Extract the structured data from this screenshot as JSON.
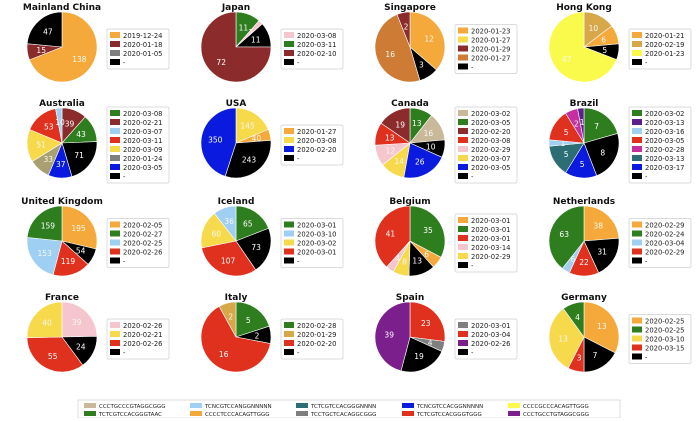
{
  "chart_data": [
    {
      "type": "pie",
      "title": "Mainland China",
      "slices": [
        {
          "value": 138,
          "color": "#f4a93a"
        },
        {
          "value": 15,
          "color": "#8c2b2b"
        },
        {
          "value": 47,
          "color": "#000000"
        }
      ],
      "legend": [
        {
          "label": "2019-12-24",
          "color": "#f4a93a"
        },
        {
          "label": "2020-01-18",
          "color": "#8c2b2b"
        },
        {
          "label": "2020-01-05",
          "color": "#7f7f7f"
        },
        {
          "label": "-",
          "color": "#000000"
        }
      ]
    },
    {
      "type": "pie",
      "title": "Japan",
      "slices": [
        {
          "value": 11,
          "color": "#2e7d1f"
        },
        {
          "value": 2,
          "color": "#f6c6cf"
        },
        {
          "value": 11,
          "color": "#000000"
        },
        {
          "value": 72,
          "color": "#8c2b2b"
        }
      ],
      "legend": [
        {
          "label": "2020-03-08",
          "color": "#f6c6cf"
        },
        {
          "label": "2020-03-11",
          "color": "#2e7d1f"
        },
        {
          "label": "2020-02-10",
          "color": "#8c2b2b"
        },
        {
          "label": "-",
          "color": "#000000"
        }
      ]
    },
    {
      "type": "pie",
      "title": "Singapore",
      "slices": [
        {
          "value": 12,
          "color": "#f4a93a"
        },
        {
          "value": 3,
          "color": "#000000"
        },
        {
          "value": 16,
          "color": "#cd7b35"
        },
        {
          "value": 2,
          "color": "#8c2b2b"
        }
      ],
      "legend": [
        {
          "label": "2020-01-23",
          "color": "#f4a93a"
        },
        {
          "label": "2020-01-27",
          "color": "#f7d94c"
        },
        {
          "label": "2020-01-29",
          "color": "#8c2b2b"
        },
        {
          "label": "2020-01-27",
          "color": "#cd7b35"
        },
        {
          "label": "-",
          "color": "#000000"
        }
      ]
    },
    {
      "type": "pie",
      "title": "Hong Kong",
      "slices": [
        {
          "value": 10,
          "color": "#d6a84a"
        },
        {
          "value": 6,
          "color": "#f4a93a"
        },
        {
          "value": 5,
          "color": "#000000"
        },
        {
          "value": 47,
          "color": "#fafa4c"
        }
      ],
      "legend": [
        {
          "label": "2020-01-21",
          "color": "#f4a93a"
        },
        {
          "label": "2020-02-19",
          "color": "#d6a84a"
        },
        {
          "label": "2020-01-23",
          "color": "#fafa4c"
        },
        {
          "label": "-",
          "color": "#000000"
        }
      ]
    },
    {
      "type": "pie",
      "title": "Australia",
      "slices": [
        {
          "value": 39,
          "color": "#8c2b2b"
        },
        {
          "value": 43,
          "color": "#2e7d1f"
        },
        {
          "value": 71,
          "color": "#000000"
        },
        {
          "value": 37,
          "color": "#0a1adf"
        },
        {
          "value": 33,
          "color": "#a9a072"
        },
        {
          "value": 51,
          "color": "#f7d94c"
        },
        {
          "value": 53,
          "color": "#e0301e"
        },
        {
          "value": 10,
          "color": "#9fcff2"
        }
      ],
      "legend": [
        {
          "label": "2020-03-08",
          "color": "#2e7d1f"
        },
        {
          "label": "2020-02-21",
          "color": "#8c2b2b"
        },
        {
          "label": "2020-03-07",
          "color": "#9fcff2"
        },
        {
          "label": "2020-03-11",
          "color": "#e0301e"
        },
        {
          "label": "2020-03-09",
          "color": "#f7d94c"
        },
        {
          "label": "2020-01-24",
          "color": "#7f7f7f"
        },
        {
          "label": "2020-03-05",
          "color": "#0a1adf"
        },
        {
          "label": "-",
          "color": "#000000"
        }
      ]
    },
    {
      "type": "pie",
      "title": "USA",
      "slices": [
        {
          "value": 145,
          "color": "#f7d94c"
        },
        {
          "value": 40,
          "color": "#f4a93a"
        },
        {
          "value": 243,
          "color": "#000000"
        },
        {
          "value": 350,
          "color": "#0a1adf"
        }
      ],
      "legend": [
        {
          "label": "2020-01-27",
          "color": "#f4a93a"
        },
        {
          "label": "2020-03-08",
          "color": "#f7d94c"
        },
        {
          "label": "2020-02-20",
          "color": "#0a1adf"
        },
        {
          "label": "-",
          "color": "#000000"
        }
      ]
    },
    {
      "type": "pie",
      "title": "Canada",
      "slices": [
        {
          "value": 13,
          "color": "#2e7d1f"
        },
        {
          "value": 16,
          "color": "#c9b99a"
        },
        {
          "value": 10,
          "color": "#000000"
        },
        {
          "value": 26,
          "color": "#0a1adf"
        },
        {
          "value": 14,
          "color": "#f7d94c"
        },
        {
          "value": 12,
          "color": "#f6c6cf"
        },
        {
          "value": 13,
          "color": "#e0301e"
        },
        {
          "value": 19,
          "color": "#8c2b2b"
        }
      ],
      "legend": [
        {
          "label": "2020-03-02",
          "color": "#c9b99a"
        },
        {
          "label": "2020-03-05",
          "color": "#2e7d1f"
        },
        {
          "label": "2020-02-20",
          "color": "#8c2b2b"
        },
        {
          "label": "2020-03-08",
          "color": "#e0301e"
        },
        {
          "label": "2020-02-29",
          "color": "#f6c6cf"
        },
        {
          "label": "2020-03-07",
          "color": "#f7d94c"
        },
        {
          "label": "2020-03-05",
          "color": "#0a1adf"
        },
        {
          "label": "-",
          "color": "#000000"
        }
      ]
    },
    {
      "type": "pie",
      "title": "Brazil",
      "slices": [
        {
          "value": 7,
          "color": "#2e7d1f"
        },
        {
          "value": 8,
          "color": "#000000"
        },
        {
          "value": 5,
          "color": "#0a1adf"
        },
        {
          "value": 5,
          "color": "#2c6e73"
        },
        {
          "value": 1,
          "color": "#9fcff2"
        },
        {
          "value": 5,
          "color": "#e0301e"
        },
        {
          "value": 2,
          "color": "#c62fa0"
        },
        {
          "value": 1,
          "color": "#5b1f8c"
        }
      ],
      "legend": [
        {
          "label": "2020-03-02",
          "color": "#2e7d1f"
        },
        {
          "label": "2020-03-13",
          "color": "#5b1f8c"
        },
        {
          "label": "2020-03-16",
          "color": "#9fcff2"
        },
        {
          "label": "2020-03-05",
          "color": "#e0301e"
        },
        {
          "label": "2020-02-28",
          "color": "#c62fa0"
        },
        {
          "label": "2020-03-13",
          "color": "#2c6e73"
        },
        {
          "label": "2020-03-17",
          "color": "#0a1adf"
        },
        {
          "label": "-",
          "color": "#000000"
        }
      ]
    },
    {
      "type": "pie",
      "title": "United Kingdom",
      "slices": [
        {
          "value": 195,
          "color": "#f4a93a"
        },
        {
          "value": 54,
          "color": "#000000"
        },
        {
          "value": 119,
          "color": "#e0301e"
        },
        {
          "value": 153,
          "color": "#9fcff2"
        },
        {
          "value": 159,
          "color": "#2e7d1f"
        }
      ],
      "legend": [
        {
          "label": "2020-02-05",
          "color": "#f4a93a"
        },
        {
          "label": "2020-02-27",
          "color": "#2e7d1f"
        },
        {
          "label": "2020-02-25",
          "color": "#9fcff2"
        },
        {
          "label": "2020-02-26",
          "color": "#e0301e"
        },
        {
          "label": "-",
          "color": "#000000"
        }
      ]
    },
    {
      "type": "pie",
      "title": "Iceland",
      "slices": [
        {
          "value": 65,
          "color": "#2e7d1f"
        },
        {
          "value": 73,
          "color": "#000000"
        },
        {
          "value": 107,
          "color": "#e0301e"
        },
        {
          "value": 60,
          "color": "#f7d94c"
        },
        {
          "value": 36,
          "color": "#9fcff2"
        }
      ],
      "legend": [
        {
          "label": "2020-03-01",
          "color": "#2e7d1f"
        },
        {
          "label": "2020-03-10",
          "color": "#9fcff2"
        },
        {
          "label": "2020-03-02",
          "color": "#f7d94c"
        },
        {
          "label": "2020-03-01",
          "color": "#e0301e"
        },
        {
          "label": "-",
          "color": "#000000"
        }
      ]
    },
    {
      "type": "pie",
      "title": "Belgium",
      "slices": [
        {
          "value": 35,
          "color": "#2e7d1f"
        },
        {
          "value": 6,
          "color": "#f4a93a"
        },
        {
          "value": 13,
          "color": "#000000"
        },
        {
          "value": 8,
          "color": "#f7d94c"
        },
        {
          "value": 4,
          "color": "#f6c6cf"
        },
        {
          "value": 41,
          "color": "#e0301e"
        }
      ],
      "legend": [
        {
          "label": "2020-03-01",
          "color": "#f4a93a"
        },
        {
          "label": "2020-03-01",
          "color": "#2e7d1f"
        },
        {
          "label": "2020-03-01",
          "color": "#e0301e"
        },
        {
          "label": "2020-03-14",
          "color": "#f6c6cf"
        },
        {
          "label": "2020-02-29",
          "color": "#f7d94c"
        },
        {
          "label": "-",
          "color": "#000000"
        }
      ]
    },
    {
      "type": "pie",
      "title": "Netherlands",
      "slices": [
        {
          "value": 38,
          "color": "#f4a93a"
        },
        {
          "value": 31,
          "color": "#000000"
        },
        {
          "value": 22,
          "color": "#e0301e"
        },
        {
          "value": 6,
          "color": "#9fcff2"
        },
        {
          "value": 63,
          "color": "#2e7d1f"
        }
      ],
      "legend": [
        {
          "label": "2020-02-29",
          "color": "#f4a93a"
        },
        {
          "label": "2020-02-24",
          "color": "#2e7d1f"
        },
        {
          "label": "2020-03-04",
          "color": "#9fcff2"
        },
        {
          "label": "2020-02-29",
          "color": "#e0301e"
        },
        {
          "label": "-",
          "color": "#000000"
        }
      ]
    },
    {
      "type": "pie",
      "title": "France",
      "slices": [
        {
          "value": 39,
          "color": "#f6c6cf"
        },
        {
          "value": 24,
          "color": "#000000"
        },
        {
          "value": 55,
          "color": "#e0301e"
        },
        {
          "value": 40,
          "color": "#f7d94c"
        }
      ],
      "legend": [
        {
          "label": "2020-02-26",
          "color": "#f6c6cf"
        },
        {
          "label": "2020-02-21",
          "color": "#f7d94c"
        },
        {
          "label": "2020-02-26",
          "color": "#e0301e"
        },
        {
          "label": "-",
          "color": "#000000"
        }
      ]
    },
    {
      "type": "pie",
      "title": "Italy",
      "slices": [
        {
          "value": 5,
          "color": "#2e7d1f"
        },
        {
          "value": 2,
          "color": "#000000"
        },
        {
          "value": 16,
          "color": "#e0301e"
        },
        {
          "value": 2,
          "color": "#d6a84a"
        }
      ],
      "legend": [
        {
          "label": "2020-02-28",
          "color": "#2e7d1f"
        },
        {
          "label": "2020-01-29",
          "color": "#d6a84a"
        },
        {
          "label": "2020-02-20",
          "color": "#e0301e"
        },
        {
          "label": "-",
          "color": "#000000"
        }
      ]
    },
    {
      "type": "pie",
      "title": "Spain",
      "slices": [
        {
          "value": 23,
          "color": "#e0301e"
        },
        {
          "value": 4,
          "color": "#7f7f7f"
        },
        {
          "value": 19,
          "color": "#000000"
        },
        {
          "value": 39,
          "color": "#7b1f8c"
        }
      ],
      "legend": [
        {
          "label": "2020-03-01",
          "color": "#7f7f7f"
        },
        {
          "label": "2020-03-04",
          "color": "#e0301e"
        },
        {
          "label": "2020-02-26",
          "color": "#7b1f8c"
        },
        {
          "label": "-",
          "color": "#000000"
        }
      ]
    },
    {
      "type": "pie",
      "title": "Germany",
      "slices": [
        {
          "value": 13,
          "color": "#f4a93a"
        },
        {
          "value": 7,
          "color": "#000000"
        },
        {
          "value": 3,
          "color": "#e0301e"
        },
        {
          "value": 13,
          "color": "#f7d94c"
        },
        {
          "value": 4,
          "color": "#2e7d1f"
        }
      ],
      "legend": [
        {
          "label": "2020-02-25",
          "color": "#f4a93a"
        },
        {
          "label": "2020-02-25",
          "color": "#2e7d1f"
        },
        {
          "label": "2020-03-10",
          "color": "#f7d94c"
        },
        {
          "label": "2020-03-15",
          "color": "#e0301e"
        },
        {
          "label": "-",
          "color": "#000000"
        }
      ]
    }
  ],
  "bottom_legend": [
    {
      "label": "CCCTGCCCGTAGGCGGG",
      "color": "#c9b99a"
    },
    {
      "label": "TCNCGTCCANGGNNNNN",
      "color": "#9fcff2"
    },
    {
      "label": "TCTCGTCCACGGGNNNN",
      "color": "#2c6e73"
    },
    {
      "label": "TCNCGTCCACGGNNNNN",
      "color": "#0a1adf"
    },
    {
      "label": "CCCCGCCCACAGTTGGG",
      "color": "#fafa4c"
    },
    {
      "label": "TCTCGTCCACGGGTAAC",
      "color": "#2e7d1f"
    },
    {
      "label": "CCCCTCCCACAGTTGGG",
      "color": "#f4a93a"
    },
    {
      "label": "TCCTGCTCACAGGCGGG",
      "color": "#7f7f7f"
    },
    {
      "label": "TCTCGTCCACGGGTGGG",
      "color": "#e0301e"
    },
    {
      "label": "CCCTGCCTGTAGGCGGG",
      "color": "#7b1f8c"
    }
  ]
}
